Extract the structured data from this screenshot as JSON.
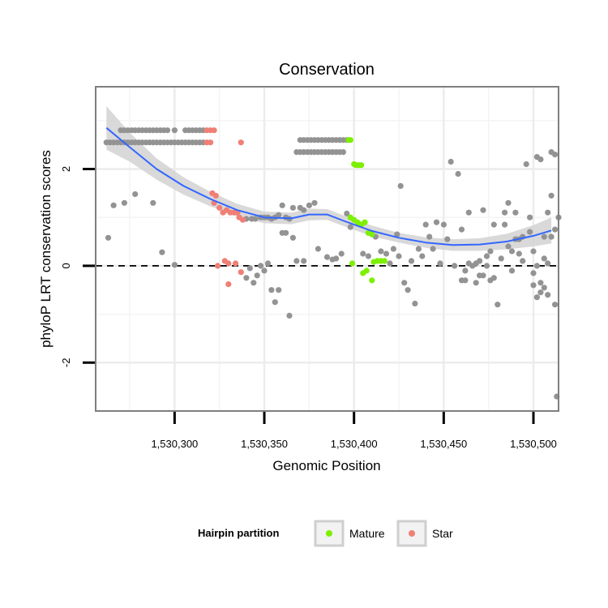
{
  "chart_data": {
    "type": "scatter",
    "title": "Conservation",
    "xlabel": "Genomic Position",
    "ylabel": "phyloP LRT conservation scores",
    "xlim": [
      1530256,
      1530514
    ],
    "ylim": [
      -3.0,
      3.7
    ],
    "x_ticks": [
      {
        "value": 1530300,
        "label": "1,530,300"
      },
      {
        "value": 1530350,
        "label": "1,530,350"
      },
      {
        "value": 1530400,
        "label": "1,530,400"
      },
      {
        "value": 1530450,
        "label": "1,530,450"
      },
      {
        "value": 1530500,
        "label": "1,530,500"
      }
    ],
    "y_ticks": [
      {
        "value": -2,
        "label": "-2"
      },
      {
        "value": 0,
        "label": "0"
      },
      {
        "value": 2,
        "label": "2"
      }
    ],
    "reference_line": {
      "y": 0,
      "style": "dashed"
    },
    "grid": true,
    "legend": {
      "title": "Hairpin partition",
      "position": "bottom",
      "entries": [
        {
          "name": "Mature",
          "color": "#7cf000"
        },
        {
          "name": "Star",
          "color": "#f07f75"
        }
      ]
    },
    "colors": {
      "other": "#939393",
      "Mature": "#7cf000",
      "Star": "#f07f75",
      "smooth": "#3366ff",
      "ribbon": "#d2d2d2"
    },
    "smooth": {
      "method": "loess",
      "x": [
        1530262,
        1530275,
        1530290,
        1530305,
        1530320,
        1530335,
        1530350,
        1530365,
        1530375,
        1530385,
        1530395,
        1530410,
        1530425,
        1530440,
        1530455,
        1530470,
        1530485,
        1530500,
        1530510
      ],
      "y": [
        2.85,
        2.45,
        2.0,
        1.65,
        1.38,
        1.15,
        1.0,
        0.98,
        1.06,
        1.06,
        0.92,
        0.72,
        0.58,
        0.48,
        0.43,
        0.44,
        0.5,
        0.62,
        0.73
      ],
      "lower": [
        2.4,
        2.15,
        1.78,
        1.47,
        1.23,
        1.02,
        0.88,
        0.86,
        0.94,
        0.95,
        0.81,
        0.61,
        0.48,
        0.37,
        0.31,
        0.31,
        0.34,
        0.4,
        0.46
      ],
      "upper": [
        3.3,
        2.75,
        2.22,
        1.83,
        1.53,
        1.28,
        1.12,
        1.1,
        1.18,
        1.17,
        1.03,
        0.83,
        0.68,
        0.59,
        0.55,
        0.57,
        0.66,
        0.84,
        1.0
      ]
    },
    "series": [
      {
        "name": "other",
        "points": [
          [
            1530262,
            2.55
          ],
          [
            1530264,
            2.55
          ],
          [
            1530266,
            2.55
          ],
          [
            1530268,
            2.55
          ],
          [
            1530270,
            2.55
          ],
          [
            1530272,
            2.55
          ],
          [
            1530274,
            2.55
          ],
          [
            1530276,
            2.55
          ],
          [
            1530278,
            2.55
          ],
          [
            1530280,
            2.55
          ],
          [
            1530282,
            2.55
          ],
          [
            1530284,
            2.55
          ],
          [
            1530286,
            2.55
          ],
          [
            1530288,
            2.55
          ],
          [
            1530290,
            2.55
          ],
          [
            1530292,
            2.55
          ],
          [
            1530294,
            2.55
          ],
          [
            1530296,
            2.55
          ],
          [
            1530298,
            2.55
          ],
          [
            1530300,
            2.55
          ],
          [
            1530302,
            2.55
          ],
          [
            1530304,
            2.55
          ],
          [
            1530306,
            2.55
          ],
          [
            1530308,
            2.55
          ],
          [
            1530310,
            2.55
          ],
          [
            1530312,
            2.55
          ],
          [
            1530314,
            2.55
          ],
          [
            1530316,
            2.55
          ],
          [
            1530270,
            2.8
          ],
          [
            1530272,
            2.8
          ],
          [
            1530274,
            2.8
          ],
          [
            1530276,
            2.8
          ],
          [
            1530278,
            2.8
          ],
          [
            1530280,
            2.8
          ],
          [
            1530282,
            2.8
          ],
          [
            1530284,
            2.8
          ],
          [
            1530286,
            2.8
          ],
          [
            1530288,
            2.8
          ],
          [
            1530290,
            2.8
          ],
          [
            1530292,
            2.8
          ],
          [
            1530294,
            2.8
          ],
          [
            1530296,
            2.8
          ],
          [
            1530300,
            2.8
          ],
          [
            1530306,
            2.8
          ],
          [
            1530308,
            2.8
          ],
          [
            1530310,
            2.8
          ],
          [
            1530312,
            2.8
          ],
          [
            1530314,
            2.8
          ],
          [
            1530316,
            2.8
          ],
          [
            1530263,
            0.58
          ],
          [
            1530266,
            1.25
          ],
          [
            1530272,
            1.3
          ],
          [
            1530278,
            1.48
          ],
          [
            1530288,
            1.3
          ],
          [
            1530293,
            0.28
          ],
          [
            1530300,
            0.02
          ],
          [
            1530335,
            1.1
          ],
          [
            1530340,
            0.97
          ],
          [
            1530343,
            0.97
          ],
          [
            1530345,
            0.97
          ],
          [
            1530348,
            1.0
          ],
          [
            1530350,
            1.0
          ],
          [
            1530352,
            1.0
          ],
          [
            1530354,
            0.97
          ],
          [
            1530356,
            1.0
          ],
          [
            1530358,
            1.05
          ],
          [
            1530360,
            1.25
          ],
          [
            1530362,
            1.0
          ],
          [
            1530364,
            0.97
          ],
          [
            1530366,
            1.2
          ],
          [
            1530370,
            1.2
          ],
          [
            1530372,
            1.15
          ],
          [
            1530375,
            1.25
          ],
          [
            1530378,
            1.3
          ],
          [
            1530340,
            -0.25
          ],
          [
            1530342,
            -0.05
          ],
          [
            1530344,
            -0.35
          ],
          [
            1530346,
            -0.2
          ],
          [
            1530348,
            0.0
          ],
          [
            1530350,
            -0.1
          ],
          [
            1530352,
            0.05
          ],
          [
            1530354,
            -0.5
          ],
          [
            1530356,
            -0.75
          ],
          [
            1530358,
            -0.5
          ],
          [
            1530360,
            0.68
          ],
          [
            1530362,
            0.68
          ],
          [
            1530364,
            -1.03
          ],
          [
            1530366,
            0.58
          ],
          [
            1530368,
            0.1
          ],
          [
            1530372,
            0.1
          ],
          [
            1530368,
            2.35
          ],
          [
            1530370,
            2.35
          ],
          [
            1530372,
            2.35
          ],
          [
            1530374,
            2.35
          ],
          [
            1530376,
            2.35
          ],
          [
            1530378,
            2.35
          ],
          [
            1530380,
            2.35
          ],
          [
            1530382,
            2.35
          ],
          [
            1530384,
            2.35
          ],
          [
            1530386,
            2.35
          ],
          [
            1530388,
            2.35
          ],
          [
            1530390,
            2.35
          ],
          [
            1530392,
            2.35
          ],
          [
            1530394,
            2.35
          ],
          [
            1530370,
            2.6
          ],
          [
            1530372,
            2.6
          ],
          [
            1530374,
            2.6
          ],
          [
            1530376,
            2.6
          ],
          [
            1530378,
            2.6
          ],
          [
            1530380,
            2.6
          ],
          [
            1530382,
            2.6
          ],
          [
            1530384,
            2.6
          ],
          [
            1530386,
            2.6
          ],
          [
            1530388,
            2.6
          ],
          [
            1530390,
            2.6
          ],
          [
            1530392,
            2.6
          ],
          [
            1530394,
            2.6
          ],
          [
            1530396,
            2.6
          ],
          [
            1530380,
            0.35
          ],
          [
            1530385,
            0.18
          ],
          [
            1530388,
            0.13
          ],
          [
            1530390,
            0.15
          ],
          [
            1530393,
            0.25
          ],
          [
            1530396,
            1.08
          ],
          [
            1530398,
            0.8
          ],
          [
            1530405,
            0.25
          ],
          [
            1530408,
            0.2
          ],
          [
            1530412,
            0.6
          ],
          [
            1530415,
            0.3
          ],
          [
            1530418,
            0.25
          ],
          [
            1530420,
            0.05
          ],
          [
            1530422,
            0.35
          ],
          [
            1530424,
            0.65
          ],
          [
            1530425,
            0.2
          ],
          [
            1530426,
            1.65
          ],
          [
            1530428,
            -0.35
          ],
          [
            1530430,
            -0.5
          ],
          [
            1530432,
            0.1
          ],
          [
            1530434,
            -0.78
          ],
          [
            1530436,
            0.35
          ],
          [
            1530438,
            0.2
          ],
          [
            1530440,
            0.85
          ],
          [
            1530442,
            0.6
          ],
          [
            1530444,
            0.35
          ],
          [
            1530446,
            0.9
          ],
          [
            1530448,
            0.05
          ],
          [
            1530450,
            0.85
          ],
          [
            1530452,
            0.55
          ],
          [
            1530454,
            2.15
          ],
          [
            1530456,
            0.0
          ],
          [
            1530458,
            1.9
          ],
          [
            1530460,
            0.75
          ],
          [
            1530462,
            -0.3
          ],
          [
            1530464,
            1.1
          ],
          [
            1530466,
            0.0
          ],
          [
            1530468,
            0.05
          ],
          [
            1530470,
            -0.2
          ],
          [
            1530472,
            1.15
          ],
          [
            1530474,
            0.0
          ],
          [
            1530476,
            -0.3
          ],
          [
            1530478,
            0.85
          ],
          [
            1530480,
            -0.8
          ],
          [
            1530482,
            0.15
          ],
          [
            1530484,
            1.1
          ],
          [
            1530486,
            1.3
          ],
          [
            1530488,
            0.3
          ],
          [
            1530490,
            1.1
          ],
          [
            1530492,
            0.55
          ],
          [
            1530494,
            0.1
          ],
          [
            1530496,
            2.1
          ],
          [
            1530498,
            1.0
          ],
          [
            1530500,
            -0.4
          ],
          [
            1530502,
            2.25
          ],
          [
            1530504,
            2.2
          ],
          [
            1530506,
            0.6
          ],
          [
            1530508,
            1.1
          ],
          [
            1530510,
            2.35
          ],
          [
            1530512,
            2.3
          ],
          [
            1530514,
            1.0
          ],
          [
            1530460,
            -0.3
          ],
          [
            1530462,
            -0.1
          ],
          [
            1530464,
            0.05
          ],
          [
            1530468,
            -0.35
          ],
          [
            1530470,
            0.1
          ],
          [
            1530472,
            -0.2
          ],
          [
            1530474,
            0.2
          ],
          [
            1530476,
            0.3
          ],
          [
            1530478,
            -0.25
          ],
          [
            1530484,
            0.85
          ],
          [
            1530486,
            0.4
          ],
          [
            1530488,
            -0.1
          ],
          [
            1530490,
            0.55
          ],
          [
            1530492,
            0.25
          ],
          [
            1530494,
            0.6
          ],
          [
            1530498,
            0.7
          ],
          [
            1530500,
            0.3
          ],
          [
            1530502,
            0.0
          ],
          [
            1530504,
            -0.35
          ],
          [
            1530506,
            -0.45
          ],
          [
            1530508,
            -0.6
          ],
          [
            1530510,
            0.6
          ],
          [
            1530512,
            -0.8
          ],
          [
            1530500,
            -0.15
          ],
          [
            1530502,
            -0.65
          ],
          [
            1530504,
            -0.55
          ],
          [
            1530506,
            0.15
          ],
          [
            1530508,
            0.05
          ],
          [
            1530510,
            1.45
          ],
          [
            1530512,
            0.75
          ],
          [
            1530513,
            -2.7
          ]
        ]
      },
      {
        "name": "Mature",
        "points": [
          [
            1530397,
            2.6
          ],
          [
            1530398,
            2.6
          ],
          [
            1530400,
            2.1
          ],
          [
            1530401,
            2.08
          ],
          [
            1530402,
            2.08
          ],
          [
            1530403,
            2.08
          ],
          [
            1530404,
            2.08
          ],
          [
            1530398,
            1.0
          ],
          [
            1530400,
            0.95
          ],
          [
            1530402,
            0.9
          ],
          [
            1530404,
            0.85
          ],
          [
            1530406,
            0.9
          ],
          [
            1530408,
            0.68
          ],
          [
            1530410,
            0.65
          ],
          [
            1530399,
            0.05
          ],
          [
            1530405,
            -0.15
          ],
          [
            1530407,
            -0.1
          ],
          [
            1530410,
            -0.3
          ],
          [
            1530411,
            0.08
          ],
          [
            1530413,
            0.1
          ],
          [
            1530415,
            0.1
          ],
          [
            1530417,
            0.1
          ]
        ]
      },
      {
        "name": "Star",
        "points": [
          [
            1530318,
            2.8
          ],
          [
            1530320,
            2.8
          ],
          [
            1530322,
            2.8
          ],
          [
            1530318,
            2.55
          ],
          [
            1530320,
            2.55
          ],
          [
            1530337,
            2.55
          ],
          [
            1530321,
            1.5
          ],
          [
            1530323,
            1.45
          ],
          [
            1530322,
            1.3
          ],
          [
            1530325,
            1.2
          ],
          [
            1530327,
            1.1
          ],
          [
            1530329,
            1.15
          ],
          [
            1530331,
            1.1
          ],
          [
            1530333,
            1.1
          ],
          [
            1530335,
            1.1
          ],
          [
            1530336,
            1.0
          ],
          [
            1530338,
            0.95
          ],
          [
            1530324,
            0.0
          ],
          [
            1530328,
            0.1
          ],
          [
            1530330,
            0.05
          ],
          [
            1530334,
            0.05
          ],
          [
            1530330,
            -0.38
          ],
          [
            1530337,
            -0.13
          ]
        ]
      }
    ]
  }
}
